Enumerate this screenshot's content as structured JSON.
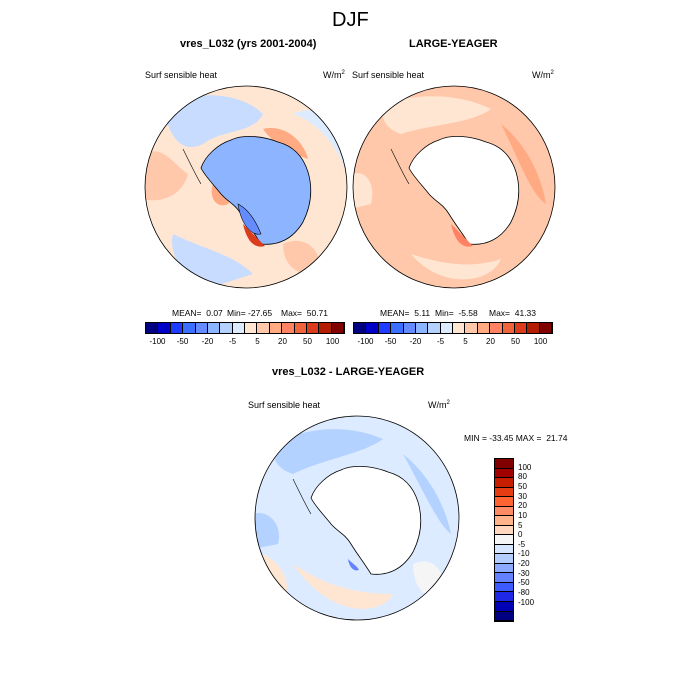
{
  "title": "DJF",
  "variable": "Surf sensible heat",
  "units": "W/m",
  "units_exp": "2",
  "panels": {
    "model": {
      "title": "vres_L032 (yrs 2001-2004)",
      "mean": "MEAN=  0.07",
      "min": "Min= -27.65",
      "max": "Max=  50.71"
    },
    "obs": {
      "title": "LARGE-YEAGER",
      "mean": "MEAN=  5.11",
      "min": "Min=  -5.58",
      "max": "Max=  41.33"
    },
    "diff": {
      "title": "vres_L032 - LARGE-YEAGER",
      "minmax": "MIN = -33.45 MAX =  21.74"
    }
  },
  "colorbar_h": {
    "ticks": [
      "-100",
      "-50",
      "-20",
      "-5",
      "5",
      "20",
      "50",
      "100"
    ],
    "colors": [
      "#000080",
      "#0000c8",
      "#1e3cff",
      "#3c6eff",
      "#648cff",
      "#8cb4ff",
      "#b4d2ff",
      "#dcebff",
      "#ffe6d2",
      "#ffc8aa",
      "#ffaa82",
      "#ff8264",
      "#f0643c",
      "#dc3c1e",
      "#b41e00",
      "#800000"
    ]
  },
  "colorbar_v": {
    "ticks": [
      "100",
      "80",
      "50",
      "30",
      "20",
      "10",
      "5",
      "0",
      "-5",
      "-10",
      "-20",
      "-30",
      "-50",
      "-80",
      "-100"
    ],
    "colors": [
      "#800000",
      "#a00000",
      "#c81e00",
      "#e63c14",
      "#ff6432",
      "#ff8c64",
      "#ffb48c",
      "#ffd7be",
      "#f5f5f5",
      "#d7e6ff",
      "#b4cdff",
      "#8caaff",
      "#6482ff",
      "#3c5aff",
      "#1e28e6",
      "#0000b4",
      "#000080"
    ]
  }
}
